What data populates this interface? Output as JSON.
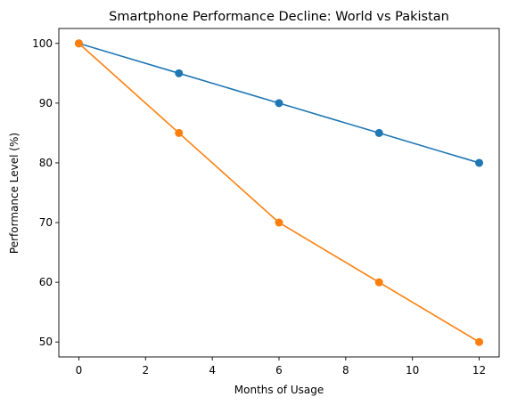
{
  "chart_data": {
    "type": "line",
    "title": "Smartphone Performance Decline: World vs Pakistan",
    "xlabel": "Months of Usage",
    "ylabel": "Performance Level (%)",
    "x": [
      0,
      3,
      6,
      9,
      12
    ],
    "xlim": [
      -0.6,
      12.6
    ],
    "ylim": [
      47.5,
      102.5
    ],
    "xticks": [
      0,
      2,
      4,
      6,
      8,
      10,
      12
    ],
    "yticks": [
      50,
      60,
      70,
      80,
      90,
      100
    ],
    "grid": false,
    "legend": "none",
    "series": [
      {
        "values": [
          100,
          95,
          90,
          85,
          80
        ],
        "color": "#1f77b4",
        "marker": "circle"
      },
      {
        "values": [
          100,
          85,
          70,
          60,
          50
        ],
        "color": "#ff7f0e",
        "marker": "circle"
      }
    ]
  }
}
